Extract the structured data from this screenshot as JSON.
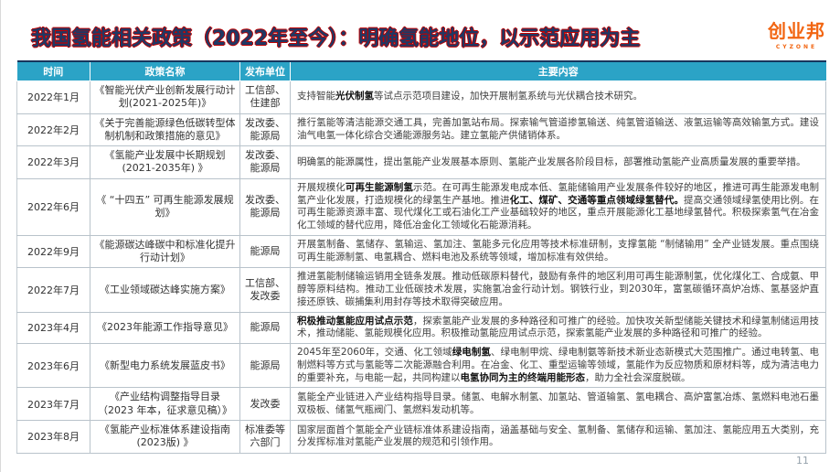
{
  "header": {
    "title": "我国氢能相关政策（2022年至今）：明确氢能地位，以示范应用为主"
  },
  "logo": {
    "text": "创业邦",
    "subtext": "CYZONE",
    "color": "#F26511"
  },
  "colors": {
    "table_header_bg": "#2BA3C6",
    "table_header_top_border": "#17365D",
    "title_core": "#1F3864",
    "title_outline": "#C00000",
    "logo_orange": "#F26511",
    "cell_border": "#B9C3CB",
    "body_text": "#3F3F3F"
  },
  "footer": {
    "page_number": "11"
  },
  "table": {
    "headers": [
      "时间",
      "政策名称",
      "发布单位",
      "主要内容"
    ],
    "rows": [
      {
        "date": "2022年1月",
        "name": "《智能光伏产业创新发展行动计划(2021-2025年)》",
        "agency": "工信部、住建部",
        "content": [
          {
            "t": "支持智能"
          },
          {
            "t": "光伏制氢",
            "b": true
          },
          {
            "t": "等试点示范项目建设，加快开展制氢系统与光伏耦合技术研究。"
          }
        ]
      },
      {
        "date": "2022年2月",
        "name": "《关于完善能源绿色低碳转型体制机制和政策措施的意见》",
        "agency": "发改委、能源局",
        "content": [
          {
            "t": "推行氢能等清洁能源交通工具，完善加氢站布局。探索输气管道掺氢输送、纯氢管道输送、液氢运输等高效输氢方式。建设油气电氢一体化综合交通能源服务站。建立氢能产供储销体系。"
          }
        ]
      },
      {
        "date": "2022年3月",
        "name": "《氢能产业发展中长期规划(2021-2035年) 》",
        "agency": "发改委、能源局",
        "content": [
          {
            "t": "明确氢的能源属性，提出氢能产业发展基本原则、氢能产业发展各阶段目标，部署推动氢能产业高质量发展的重要举措。"
          }
        ]
      },
      {
        "date": "2022年6月",
        "name": "《 “十四五” 可再生能源发展规划》",
        "agency": "发改委、能源局",
        "content": [
          {
            "t": "开展规模化"
          },
          {
            "t": "可再生能源制氢",
            "b": true
          },
          {
            "t": "示范。在可再生能源发电成本低、氢能储输用产业发展条件较好的地区，推进可再生能源发电制氢产业化发展，打造规模化的绿氢生产基地。推进"
          },
          {
            "t": "化工、煤矿、交通等重点领域绿氢替代。",
            "b": true
          },
          {
            "t": "提高交通领域绿氢使用比例。在可再生能源资源丰富、现代煤化工或石油化工产业基础较好的地区，重点开展能源化工基地绿氢替代。积极探索氢气在冶金化工领域的替代应用，降低冶金化工领域化石能源消耗。"
          }
        ]
      },
      {
        "date": "2022年9月",
        "name": "《能源碳达峰碳中和标准化提升行动计划》",
        "agency": "能源局",
        "content": [
          {
            "t": "开展氢制备、氢储存、氢输运、氢加注、氢能多元化应用等技术标准研制，支撑氢能 “制储输用” 全产业链发展。重点围绕可再生能源制氢、电氢耦合、燃料电池及系统等领域，增加标准有效供给。"
          }
        ]
      },
      {
        "date": "2022年7月",
        "name": "《工业领域碳达峰实施方案》",
        "agency": "工信部、发改委",
        "content": [
          {
            "t": "推进氢能制储输运销用全链条发展。推动低碳原料替代，鼓励有条件的地区利用可再生能源制氢，优化煤化工、合成氨、甲醇等原料结构。推动工业低碳技术发展，实施氢冶金行动计划。钢铁行业，到2030年，富氢碳循环高炉冶炼、氢基竖炉直接还原铁、碳捕集利用封存等技术取得突破应用。"
          }
        ]
      },
      {
        "date": "2023年4月",
        "name": "《2023年能源工作指导意见》",
        "agency": "能源局",
        "content": [
          {
            "t": "积极推动氢能应用试点示范",
            "b": true
          },
          {
            "t": "，探索氢能产业发展的多种路径和可推广的经验。加快攻关新型储能关键技术和绿氢制储运用技术，推动储能、氢能规模化应用。积极推动氢能应用试点示范，探索氢能产业发展的多种路径和可推广的经验。"
          }
        ]
      },
      {
        "date": "2023年6月",
        "name": "《新型电力系统发展蓝皮书》",
        "agency": "能源局",
        "content": [
          {
            "t": "2045年至2060年，交通、化工领域"
          },
          {
            "t": "绿电制氢",
            "b": true
          },
          {
            "t": "、绿电制甲烷、绿电制氨等新技术新业态新模式大范围推广。通过电转氢、电制燃料等方式与氢能等二次能源融合利用。在冶金、化工、重型运输等领域，氢能作为反应物质和原材料等，成为清洁电力的重要补充，与电能一起，共同构建以"
          },
          {
            "t": "电氢协同为主的终端用能形态",
            "b": true
          },
          {
            "t": "，助力全社会深度脱碳。"
          }
        ]
      },
      {
        "date": "2023年7月",
        "name": "《产业结构调整指导目录（2023 年本，征求意见稿）》",
        "agency": "发改委",
        "content": [
          {
            "t": "氢能全产业链进入产业结构指导目录。储氢、电解水制氢、加氢站、管道输氢、氢电耦合、高炉富氢冶炼、氢燃料电池石墨双极板、储氢气瓶阀门、氢燃料发动机等。"
          }
        ]
      },
      {
        "date": "2023年8月",
        "name": "《氢能产业标准体系建设指南(2023版) 》",
        "agency": "标准委等六部门",
        "content": [
          {
            "t": "国家层面首个氢能全产业链标准体系建设指南，涵盖基础与安全、氢制备、氢储存和运输、氢加注、氢能应用五大类别，充分发挥标准对氢能产业发展的规范和引领作用。"
          }
        ]
      }
    ]
  }
}
